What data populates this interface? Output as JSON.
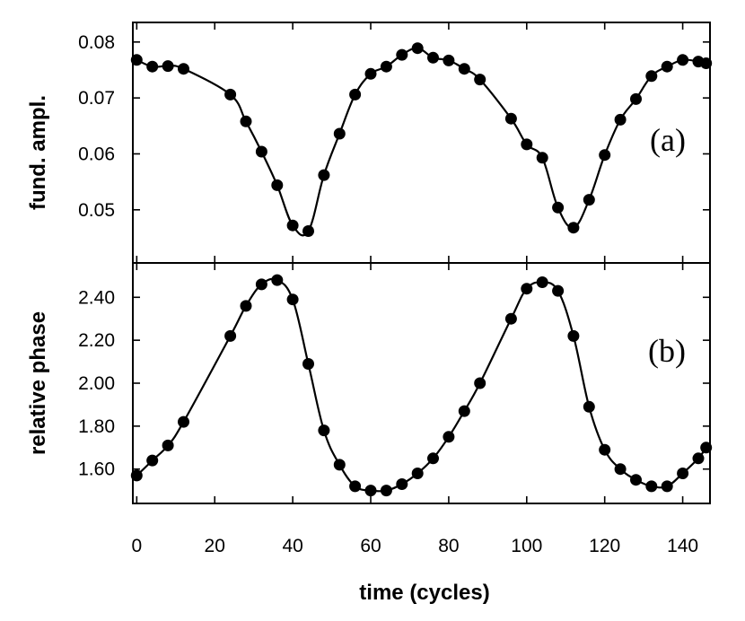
{
  "chart_data": [
    {
      "type": "line",
      "panel_label": "(a)",
      "title": "",
      "xlabel": "time (cycles)",
      "ylabel": "fund. ampl.",
      "xlim": [
        -1,
        147
      ],
      "ylim": [
        0.0405,
        0.0835
      ],
      "xticks": [
        0,
        20,
        40,
        60,
        80,
        100,
        120,
        140
      ],
      "yticks": [
        0.05,
        0.06,
        0.07,
        0.08
      ],
      "ytick_labels": [
        "0.05",
        "0.06",
        "0.07",
        "0.08"
      ],
      "grid": false,
      "series": [
        {
          "name": "fund. ampl.",
          "x": [
            0,
            4,
            8,
            12,
            24,
            28,
            32,
            36,
            40,
            44,
            48,
            52,
            56,
            60,
            64,
            68,
            72,
            76,
            80,
            84,
            88,
            96,
            100,
            104,
            108,
            112,
            116,
            120,
            124,
            128,
            132,
            136,
            140,
            144,
            146
          ],
          "y": [
            0.0768,
            0.0756,
            0.0757,
            0.0752,
            0.0706,
            0.0658,
            0.0604,
            0.0544,
            0.0472,
            0.0462,
            0.0562,
            0.0636,
            0.0706,
            0.0743,
            0.0756,
            0.0777,
            0.0789,
            0.0772,
            0.0767,
            0.0752,
            0.0733,
            0.0663,
            0.0617,
            0.0593,
            0.0504,
            0.0468,
            0.0518,
            0.0598,
            0.0661,
            0.0698,
            0.0739,
            0.0756,
            0.0768,
            0.0765,
            0.0762
          ]
        }
      ]
    },
    {
      "type": "line",
      "panel_label": "(b)",
      "title": "",
      "xlabel": "time (cycles)",
      "ylabel": "relative phase",
      "xlim": [
        -1,
        147
      ],
      "ylim": [
        1.44,
        2.56
      ],
      "xticks": [
        0,
        20,
        40,
        60,
        80,
        100,
        120,
        140
      ],
      "xtick_labels": [
        "0",
        "20",
        "40",
        "60",
        "80",
        "100",
        "120",
        "140"
      ],
      "yticks": [
        1.6,
        1.8,
        2.0,
        2.2,
        2.4
      ],
      "ytick_labels": [
        "1.60",
        "1.80",
        "2.00",
        "2.20",
        "2.40"
      ],
      "grid": false,
      "series": [
        {
          "name": "relative phase",
          "x": [
            0,
            4,
            8,
            12,
            24,
            28,
            32,
            36,
            40,
            44,
            48,
            52,
            56,
            60,
            64,
            68,
            72,
            76,
            80,
            84,
            88,
            96,
            100,
            104,
            108,
            112,
            116,
            120,
            124,
            128,
            132,
            136,
            140,
            144,
            146
          ],
          "y": [
            1.57,
            1.64,
            1.71,
            1.82,
            2.22,
            2.36,
            2.46,
            2.48,
            2.39,
            2.09,
            1.78,
            1.62,
            1.52,
            1.5,
            1.5,
            1.53,
            1.58,
            1.65,
            1.75,
            1.87,
            2.0,
            2.3,
            2.44,
            2.47,
            2.43,
            2.22,
            1.89,
            1.69,
            1.6,
            1.55,
            1.52,
            1.52,
            1.58,
            1.65,
            1.7
          ]
        }
      ]
    }
  ]
}
